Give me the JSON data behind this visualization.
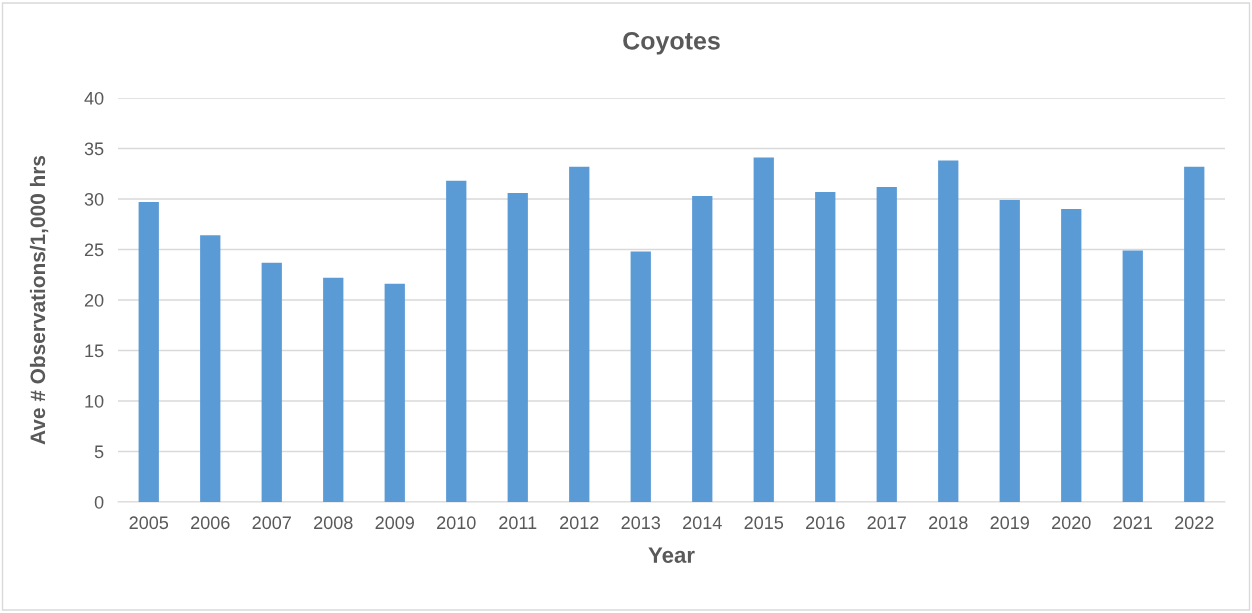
{
  "chart_data": {
    "type": "bar",
    "title": "Coyotes",
    "xlabel": "Year",
    "ylabel": "Ave # Observations/1,000 hrs",
    "categories": [
      "2005",
      "2006",
      "2007",
      "2008",
      "2009",
      "2010",
      "2011",
      "2012",
      "2013",
      "2014",
      "2015",
      "2016",
      "2017",
      "2018",
      "2019",
      "2020",
      "2021",
      "2022"
    ],
    "series": [
      {
        "color": "#5b9bd5",
        "values": [
          29.7,
          26.4,
          23.7,
          22.2,
          21.6,
          31.8,
          30.6,
          33.2,
          24.8,
          30.3,
          34.1,
          30.7,
          31.2,
          33.8,
          29.9,
          29.0,
          24.9,
          33.2
        ]
      }
    ],
    "ylim": [
      0,
      40
    ],
    "yticks": [
      0,
      5,
      10,
      15,
      20,
      25,
      30,
      35,
      40
    ],
    "grid": "y",
    "legend": false
  }
}
